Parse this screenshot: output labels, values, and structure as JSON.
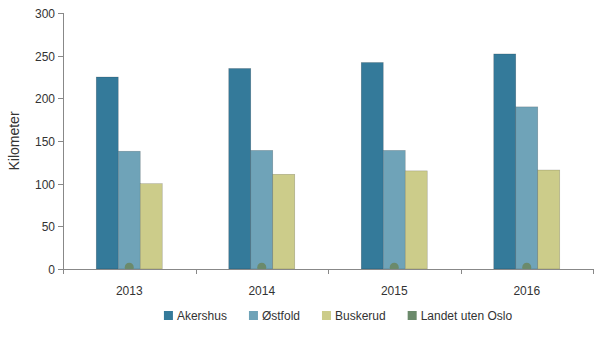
{
  "chart_data": {
    "type": "bar",
    "y_label": "Kilometer",
    "categories": [
      "2013",
      "2014",
      "2015",
      "2016"
    ],
    "series": [
      {
        "name": "Akershus",
        "color": "#347a9a",
        "values": [
          225,
          235,
          242,
          252
        ]
      },
      {
        "name": "Østfold",
        "color": "#6fa3b8",
        "values": [
          138,
          139,
          139,
          190
        ]
      },
      {
        "name": "Buskerud",
        "color": "#cccc8a",
        "values": [
          100,
          111,
          115,
          116
        ]
      },
      {
        "name": "Landet uten Oslo",
        "color": "#6b8a6b",
        "type": "scatter",
        "marker": "circle",
        "values": [
          2,
          2,
          2,
          2
        ]
      }
    ],
    "ylim": [
      0,
      300
    ],
    "yticks": [
      0,
      50,
      100,
      150,
      200,
      250,
      300
    ],
    "grid": false,
    "legend": "bottom"
  }
}
